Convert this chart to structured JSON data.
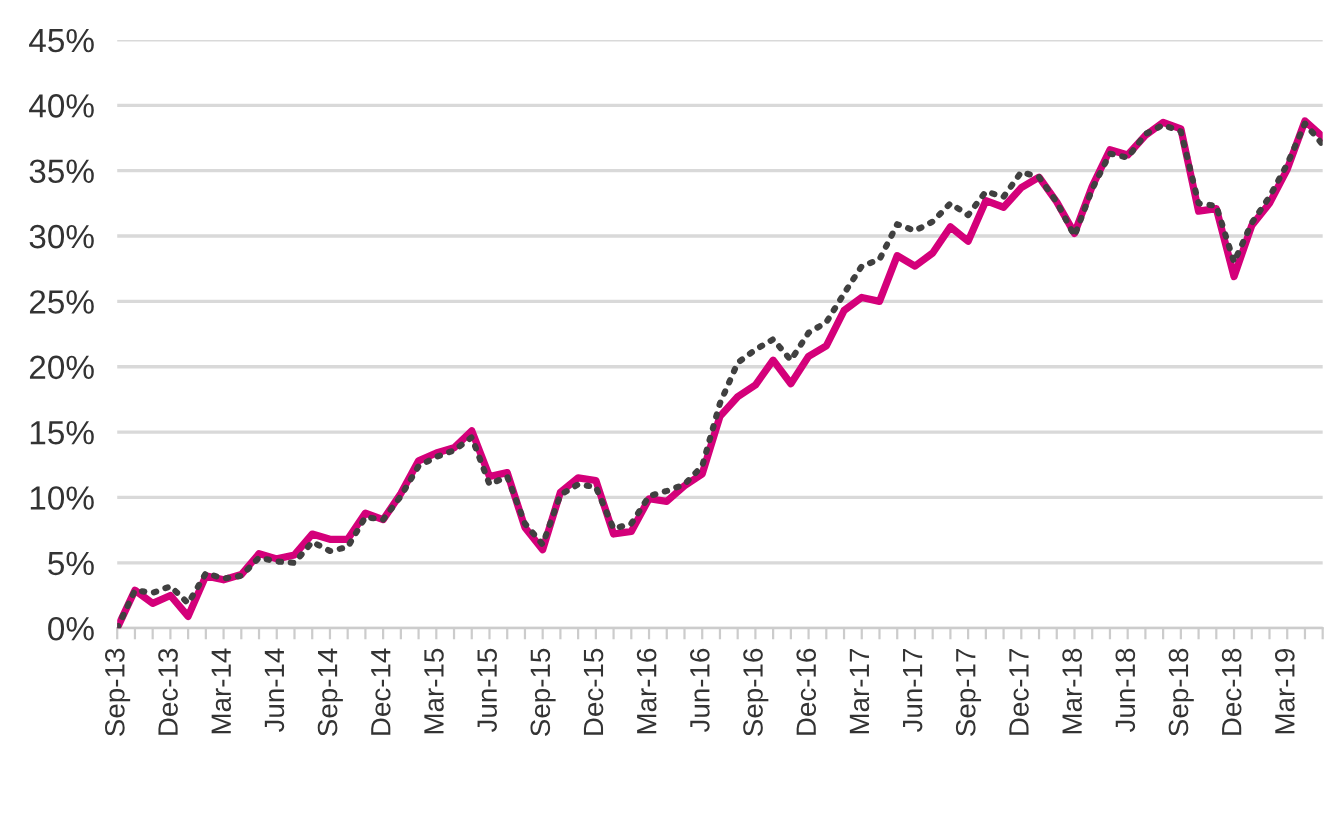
{
  "chart_data": {
    "type": "line",
    "categories": [
      "Sep-13",
      null,
      null,
      "Dec-13",
      null,
      null,
      "Mar-14",
      null,
      null,
      "Jun-14",
      null,
      null,
      "Sep-14",
      null,
      null,
      "Dec-14",
      null,
      null,
      "Mar-15",
      null,
      null,
      "Jun-15",
      null,
      null,
      "Sep-15",
      null,
      null,
      "Dec-15",
      null,
      null,
      "Mar-16",
      null,
      null,
      "Jun-16",
      null,
      null,
      "Sep-16",
      null,
      null,
      "Dec-16",
      null,
      null,
      "Mar-17",
      null,
      null,
      "Jun-17",
      null,
      null,
      "Sep-17",
      null,
      null,
      "Dec-17",
      null,
      null,
      "Mar-18",
      null,
      null,
      "Jun-18",
      null,
      null,
      "Sep-18",
      null,
      null,
      "Dec-18",
      null,
      null,
      "Mar-19",
      null,
      null
    ],
    "series": [
      {
        "color": "#d4007a",
        "line_style": "solid",
        "values": [
          0,
          2.9,
          1.9,
          2.5,
          0.9,
          4.0,
          3.7,
          4.1,
          5.7,
          5.3,
          5.6,
          7.2,
          6.8,
          6.8,
          8.8,
          8.3,
          10.3,
          12.8,
          13.4,
          13.8,
          15.1,
          11.6,
          11.9,
          7.7,
          6.0,
          10.4,
          11.5,
          11.3,
          7.2,
          7.4,
          9.9,
          9.7,
          10.9,
          11.8,
          16.2,
          17.7,
          18.6,
          20.5,
          18.7,
          20.8,
          21.6,
          24.3,
          25.3,
          25.0,
          28.5,
          27.7,
          28.7,
          30.7,
          29.6,
          32.7,
          32.2,
          33.7,
          34.5,
          32.6,
          30.2,
          33.8,
          36.6,
          36.2,
          37.7,
          38.7,
          38.2,
          31.9,
          32.1,
          26.9,
          30.8,
          32.5,
          35.1,
          38.8,
          37.6
        ]
      },
      {
        "color": "#404040",
        "line_style": "dotted",
        "values": [
          0,
          2.9,
          2.7,
          3.2,
          1.9,
          4.2,
          3.8,
          4.0,
          5.4,
          5.1,
          5.0,
          6.6,
          5.9,
          6.2,
          8.5,
          8.3,
          10.1,
          12.4,
          13.1,
          13.6,
          14.6,
          11.0,
          11.6,
          8.0,
          6.4,
          10.2,
          11.0,
          10.8,
          7.6,
          8.0,
          10.1,
          10.5,
          11.0,
          12.4,
          17.2,
          20.3,
          21.3,
          22.1,
          20.5,
          22.6,
          23.4,
          25.6,
          27.7,
          28.2,
          30.9,
          30.4,
          31.1,
          32.5,
          31.6,
          33.4,
          33.0,
          34.9,
          34.5,
          32.6,
          30.0,
          33.6,
          36.3,
          36.0,
          37.8,
          38.5,
          38.0,
          32.5,
          32.3,
          28.0,
          31.0,
          33.0,
          35.5,
          38.6,
          37.0
        ]
      }
    ],
    "ylim": [
      0,
      45
    ],
    "yticks": [
      {
        "value": 0,
        "label": "0%"
      },
      {
        "value": 5,
        "label": "5%"
      },
      {
        "value": 10,
        "label": "10%"
      },
      {
        "value": 15,
        "label": "15%"
      },
      {
        "value": 20,
        "label": "20%"
      },
      {
        "value": 25,
        "label": "25%"
      },
      {
        "value": 30,
        "label": "30%"
      },
      {
        "value": 35,
        "label": "35%"
      },
      {
        "value": 40,
        "label": "40%"
      },
      {
        "value": 45,
        "label": "45%"
      }
    ],
    "grid": "y",
    "marker": "none"
  }
}
